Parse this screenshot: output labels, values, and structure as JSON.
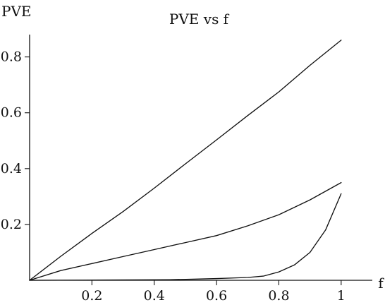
{
  "chart_data": {
    "type": "line",
    "title": "PVE vs f",
    "xlabel": "f",
    "ylabel": "PVE",
    "xlim": [
      0,
      1.1
    ],
    "ylim": [
      0,
      0.88
    ],
    "grid": false,
    "legend": "none",
    "x_ticks": [
      0.2,
      0.4,
      0.6,
      0.8,
      1
    ],
    "x_tick_labels": [
      "0.2",
      "0.4",
      "0.6",
      "0.8",
      "1"
    ],
    "y_ticks": [
      0.2,
      0.4,
      0.6,
      0.8
    ],
    "y_tick_labels": [
      "0.2",
      "0.4",
      "0.6",
      "0.8"
    ],
    "series": [
      {
        "x": [
          0,
          0.1,
          0.2,
          0.3,
          0.4,
          0.5,
          0.6,
          0.7,
          0.8,
          0.9,
          1
        ],
        "values": [
          0,
          0.086,
          0.168,
          0.246,
          0.33,
          0.417,
          0.503,
          0.59,
          0.675,
          0.77,
          0.86
        ]
      },
      {
        "x": [
          0,
          0.1,
          0.2,
          0.3,
          0.4,
          0.5,
          0.6,
          0.7,
          0.8,
          0.9,
          1
        ],
        "values": [
          0,
          0.035,
          0.06,
          0.085,
          0.11,
          0.135,
          0.16,
          0.195,
          0.235,
          0.288,
          0.35
        ]
      },
      {
        "x": [
          0,
          0.45,
          0.6,
          0.7,
          0.75,
          0.8,
          0.85,
          0.9,
          0.95,
          1
        ],
        "values": [
          0,
          0.002,
          0.006,
          0.01,
          0.015,
          0.03,
          0.055,
          0.1,
          0.18,
          0.31
        ]
      }
    ]
  },
  "colors": {
    "line": "#111111",
    "background": "#ffffff"
  }
}
